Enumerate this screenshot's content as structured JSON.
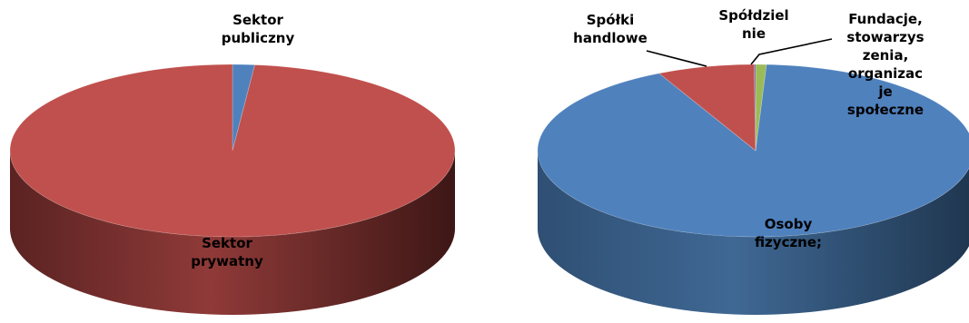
{
  "chart_data": [
    {
      "type": "pie",
      "style": "3d",
      "colors": [
        "#4F81BD",
        "#C0504D"
      ],
      "labels": [
        [
          "Sektor",
          "publiczny"
        ],
        [
          "Sektor",
          "prywatny"
        ]
      ],
      "values": [
        1.6,
        98.4
      ]
    },
    {
      "type": "pie",
      "style": "3d",
      "colors": [
        "#9BBB59",
        "#4F81BD",
        "#C0504D",
        "#8064A2"
      ],
      "labels": [
        [
          "Spółdziel",
          "nie"
        ],
        [
          "Osoby",
          "fizyczne;"
        ],
        [
          "Spółki",
          "handlowe"
        ],
        [
          "Fundacje,",
          "stowarzys",
          "zenia,",
          "organizac",
          "je",
          "społeczne"
        ]
      ],
      "values": [
        0.8,
        91.9,
        7.2,
        0.1
      ]
    }
  ]
}
